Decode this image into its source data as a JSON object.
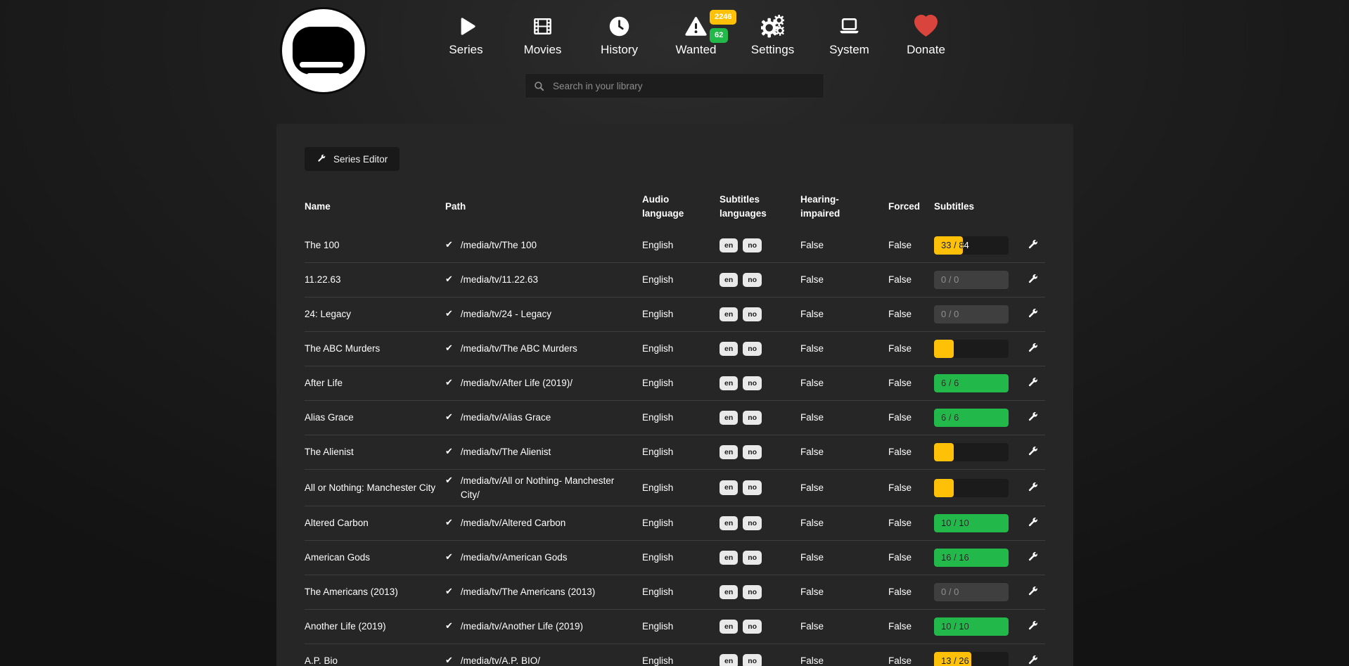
{
  "nav": {
    "items": [
      {
        "label": "Series",
        "icon": "play-icon"
      },
      {
        "label": "Movies",
        "icon": "film-icon"
      },
      {
        "label": "History",
        "icon": "clock-icon"
      },
      {
        "label": "Wanted",
        "icon": "warning-triangle-icon",
        "badges": [
          {
            "value": "2246",
            "type": "warning"
          },
          {
            "value": "62",
            "type": "success"
          }
        ]
      },
      {
        "label": "Settings",
        "icon": "gears-icon"
      },
      {
        "label": "System",
        "icon": "laptop-icon"
      },
      {
        "label": "Donate",
        "icon": "heart-icon"
      }
    ],
    "search": {
      "placeholder": "Search in your library",
      "value": ""
    }
  },
  "toolbar": {
    "series_editor_label": "Series Editor"
  },
  "table": {
    "headers": [
      "Name",
      "Path",
      "Audio language",
      "Subtitles languages",
      "Hearing-impaired",
      "Forced",
      "Subtitles"
    ],
    "rows": [
      {
        "name": "The 100",
        "path": "/media/tv/The 100",
        "audio": "English",
        "subtitle_languages": [
          "en",
          "no"
        ],
        "hearing_impaired": "False",
        "forced": "False",
        "subtitles": {
          "label": "33 / 84",
          "percent": 39,
          "state": "warning"
        }
      },
      {
        "name": "11.22.63",
        "path": "/media/tv/11.22.63",
        "audio": "English",
        "subtitle_languages": [
          "en",
          "no"
        ],
        "hearing_impaired": "False",
        "forced": "False",
        "subtitles": {
          "label": "0 / 0",
          "percent": 0,
          "state": "disabled"
        }
      },
      {
        "name": "24: Legacy",
        "path": "/media/tv/24 - Legacy",
        "audio": "English",
        "subtitle_languages": [
          "en",
          "no"
        ],
        "hearing_impaired": "False",
        "forced": "False",
        "subtitles": {
          "label": "0 / 0",
          "percent": 0,
          "state": "disabled"
        }
      },
      {
        "name": "The ABC Murders",
        "path": "/media/tv/The ABC Murders",
        "audio": "English",
        "subtitle_languages": [
          "en",
          "no"
        ],
        "hearing_impaired": "False",
        "forced": "False",
        "subtitles": {
          "label": "",
          "percent": 26,
          "state": "warning"
        }
      },
      {
        "name": "After Life",
        "path": "/media/tv/After Life (2019)/",
        "audio": "English",
        "subtitle_languages": [
          "en",
          "no"
        ],
        "hearing_impaired": "False",
        "forced": "False",
        "subtitles": {
          "label": "6 / 6",
          "percent": 100,
          "state": "success"
        }
      },
      {
        "name": "Alias Grace",
        "path": "/media/tv/Alias Grace",
        "audio": "English",
        "subtitle_languages": [
          "en",
          "no"
        ],
        "hearing_impaired": "False",
        "forced": "False",
        "subtitles": {
          "label": "6 / 6",
          "percent": 100,
          "state": "success"
        }
      },
      {
        "name": "The Alienist",
        "path": "/media/tv/The Alienist",
        "audio": "English",
        "subtitle_languages": [
          "en",
          "no"
        ],
        "hearing_impaired": "False",
        "forced": "False",
        "subtitles": {
          "label": "",
          "percent": 26,
          "state": "warning"
        }
      },
      {
        "name": "All or Nothing: Manchester City",
        "path": "/media/tv/All or Nothing- Manchester City/",
        "audio": "English",
        "subtitle_languages": [
          "en",
          "no"
        ],
        "hearing_impaired": "False",
        "forced": "False",
        "subtitles": {
          "label": "",
          "percent": 26,
          "state": "warning"
        }
      },
      {
        "name": "Altered Carbon",
        "path": "/media/tv/Altered Carbon",
        "audio": "English",
        "subtitle_languages": [
          "en",
          "no"
        ],
        "hearing_impaired": "False",
        "forced": "False",
        "subtitles": {
          "label": "10 / 10",
          "percent": 100,
          "state": "success"
        }
      },
      {
        "name": "American Gods",
        "path": "/media/tv/American Gods",
        "audio": "English",
        "subtitle_languages": [
          "en",
          "no"
        ],
        "hearing_impaired": "False",
        "forced": "False",
        "subtitles": {
          "label": "16 / 16",
          "percent": 100,
          "state": "success"
        }
      },
      {
        "name": "The Americans (2013)",
        "path": "/media/tv/The Americans (2013)",
        "audio": "English",
        "subtitle_languages": [
          "en",
          "no"
        ],
        "hearing_impaired": "False",
        "forced": "False",
        "subtitles": {
          "label": "0 / 0",
          "percent": 0,
          "state": "disabled"
        }
      },
      {
        "name": "Another Life (2019)",
        "path": "/media/tv/Another Life (2019)",
        "audio": "English",
        "subtitle_languages": [
          "en",
          "no"
        ],
        "hearing_impaired": "False",
        "forced": "False",
        "subtitles": {
          "label": "10 / 10",
          "percent": 100,
          "state": "success"
        }
      },
      {
        "name": "A.P. Bio",
        "path": "/media/tv/A.P. BIO/",
        "audio": "English",
        "subtitle_languages": [
          "en",
          "no"
        ],
        "hearing_impaired": "False",
        "forced": "False",
        "subtitles": {
          "label": "13 / 26",
          "percent": 50,
          "state": "warning"
        }
      }
    ]
  },
  "colors": {
    "warning": "#ffc107",
    "success": "#22b84a",
    "disabled_bar": "#3f3f3f",
    "language_badge_bg": "#e9e9e9",
    "heart": "#d9453c"
  }
}
